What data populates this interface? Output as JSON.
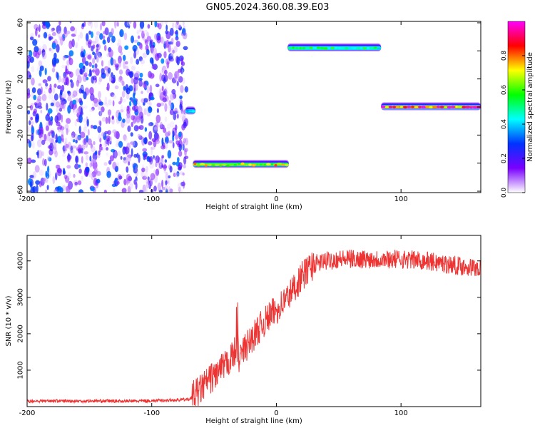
{
  "title": "GN05.2024.360.08.39.E03",
  "chart_data": [
    {
      "type": "heatmap",
      "xlabel": "Height of straight line (km)",
      "ylabel": "Frequency (Hz)",
      "xlim": [
        -200,
        164
      ],
      "ylim": [
        -61,
        61
      ],
      "xticks": [
        -200,
        -100,
        0,
        100
      ],
      "yticks": [
        -60,
        -40,
        -20,
        0,
        20,
        40,
        60
      ],
      "colorbar": {
        "label": "Normalized spectral amplitude",
        "range": [
          0,
          1
        ],
        "ticks": [
          0.0,
          0.2,
          0.4,
          0.6,
          0.8
        ],
        "colormap": [
          "#ffffff",
          "#7a00ff",
          "#0033ff",
          "#00ffff",
          "#00ff00",
          "#ffff00",
          "#ff0000",
          "#ff00ff"
        ]
      },
      "noise_region": {
        "x": [
          -200,
          -72
        ],
        "y": [
          -60,
          60
        ],
        "amplitude": [
          0.02,
          0.35
        ]
      },
      "segments": [
        {
          "x": [
            -73,
            -65
          ],
          "frequency": -3,
          "amplitude": 0.45
        },
        {
          "x": [
            -67,
            10
          ],
          "frequency": -41,
          "amplitude": 0.75
        },
        {
          "x": [
            9,
            84
          ],
          "frequency": 42,
          "amplitude": 0.55
        },
        {
          "x": [
            84,
            164
          ],
          "frequency": 0,
          "amplitude": 0.95
        }
      ],
      "grid": false,
      "legend": "none"
    },
    {
      "type": "line",
      "xlabel": "Height of straight line (km)",
      "ylabel": "SNR (10 * v/v)",
      "xlim": [
        -200,
        164
      ],
      "ylim": [
        0,
        4700
      ],
      "xticks": [
        -200,
        -100,
        0,
        100
      ],
      "yticks": [
        1000,
        2000,
        3000,
        4000
      ],
      "series": [
        {
          "color": "#ee3333",
          "x": [
            -200,
            -180,
            -160,
            -140,
            -120,
            -100,
            -80,
            -70,
            -65,
            -60,
            -55,
            -50,
            -45,
            -40,
            -35,
            -32,
            -30,
            -25,
            -20,
            -15,
            -10,
            -5,
            0,
            5,
            10,
            15,
            20,
            25,
            30,
            40,
            50,
            60,
            70,
            80,
            90,
            100,
            110,
            120,
            130,
            140,
            150,
            164
          ],
          "y": [
            150,
            160,
            150,
            155,
            150,
            160,
            180,
            200,
            350,
            500,
            700,
            850,
            1000,
            1150,
            1400,
            1600,
            1350,
            1600,
            1850,
            2100,
            2300,
            2500,
            2650,
            2850,
            3050,
            3300,
            3550,
            3750,
            3900,
            4000,
            4050,
            4050,
            4050,
            4050,
            4050,
            4050,
            4030,
            4000,
            3950,
            3900,
            3850,
            3800
          ]
        }
      ],
      "grid": false,
      "legend": "none"
    }
  ]
}
